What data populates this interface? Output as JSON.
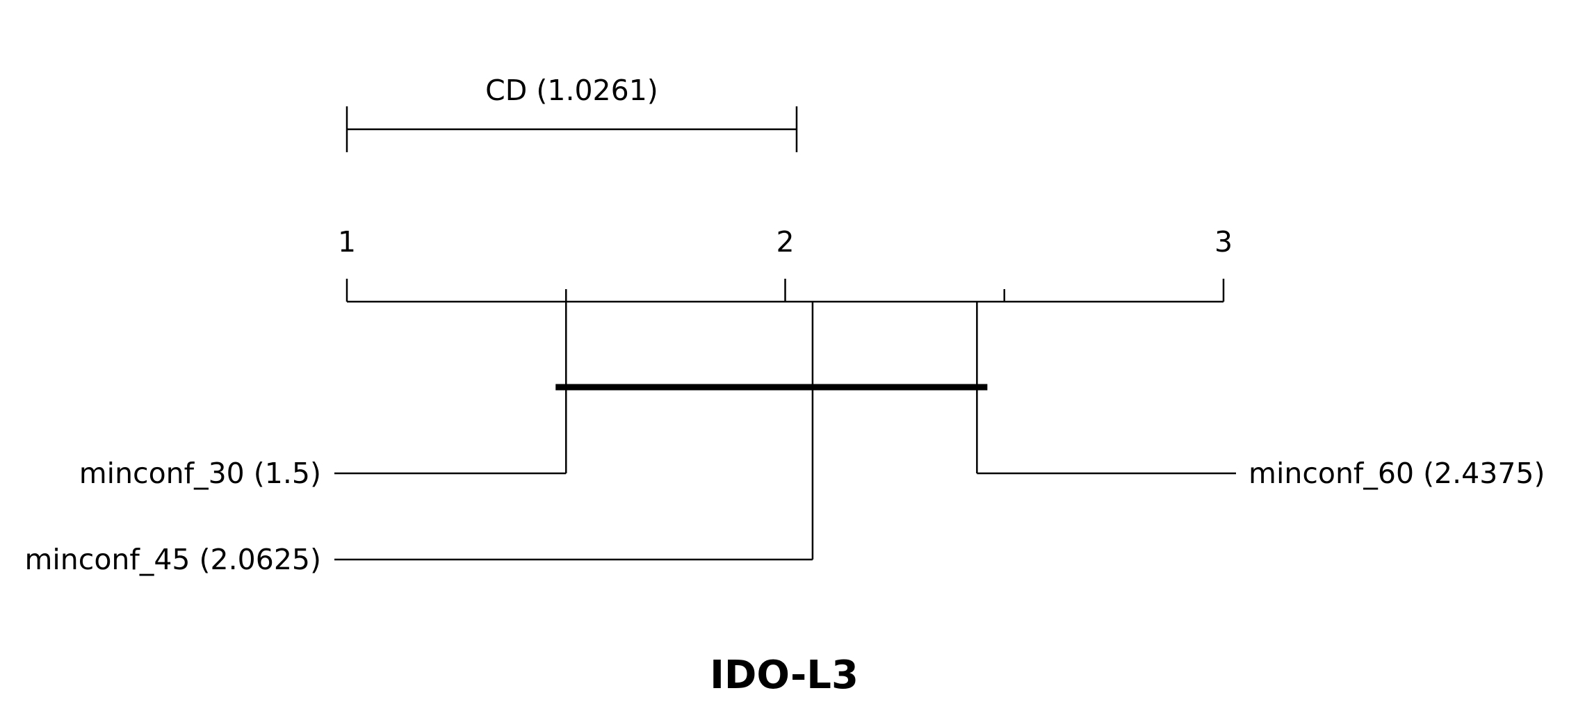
{
  "chart_data": {
    "type": "critical-difference",
    "title": "IDO-L3",
    "axis": {
      "min": 1,
      "max": 3,
      "tick_labels": [
        "1",
        "2",
        "3"
      ],
      "minor_ticks": [
        1.5,
        2.5
      ]
    },
    "cd": {
      "value": 1.0261,
      "label": "CD (1.0261)"
    },
    "methods": [
      {
        "name": "minconf_30",
        "rank": 1.5,
        "label": "minconf_30 (1.5)",
        "side": "left"
      },
      {
        "name": "minconf_45",
        "rank": 2.0625,
        "label": "minconf_45 (2.0625)",
        "side": "left"
      },
      {
        "name": "minconf_60",
        "rank": 2.4375,
        "label": "minconf_60 (2.4375)",
        "side": "right"
      }
    ],
    "cliques": [
      {
        "from": 1.5,
        "to": 2.4375
      }
    ]
  }
}
